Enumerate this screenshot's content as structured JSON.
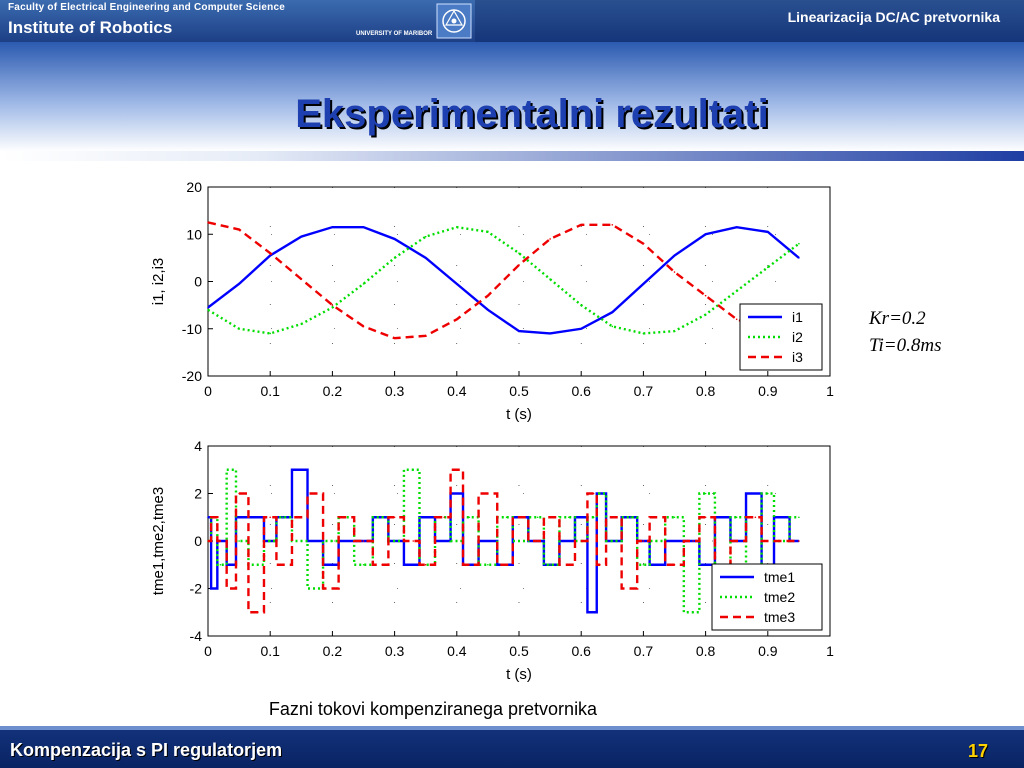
{
  "header": {
    "faculty": "Faculty of Electrical Engineering and Computer Science",
    "institute": "Institute of Robotics",
    "university": "UNIVERSITY OF MARIBOR",
    "topic": "Linearizacija DC/AC pretvornika"
  },
  "slide": {
    "title": "Eksperimentalni rezultati",
    "params": {
      "kr": "Kr=0.2",
      "ti": "Ti=0.8ms"
    },
    "caption": "Fazni tokovi kompenziranega pretvornika"
  },
  "footer": {
    "text": "Kompenzacija s PI regulatorjem",
    "page": "17"
  },
  "colors": {
    "i1": "#0000ff",
    "i2": "#00dd00",
    "i3": "#ee0000"
  },
  "chart_data": [
    {
      "type": "line",
      "xlabel": "t (s)",
      "ylabel": "i1, i2,i3",
      "xlim": [
        0,
        1
      ],
      "ylim": [
        -20,
        20
      ],
      "xticks": [
        "0",
        "0.1",
        "0.2",
        "0.3",
        "0.4",
        "0.5",
        "0.6",
        "0.7",
        "0.8",
        "0.9",
        "1"
      ],
      "yticks": [
        "20",
        "10",
        "0",
        "-10",
        "-20"
      ],
      "legend_position": "lower-right",
      "x": [
        0,
        0.05,
        0.1,
        0.15,
        0.2,
        0.25,
        0.3,
        0.35,
        0.4,
        0.45,
        0.5,
        0.55,
        0.6,
        0.65,
        0.7,
        0.75,
        0.8,
        0.85,
        0.9,
        0.95
      ],
      "series": [
        {
          "name": "i1",
          "style": "solid",
          "values": [
            -5.5,
            -0.5,
            5.5,
            9.5,
            11.5,
            11.5,
            9,
            5,
            -0.5,
            -6,
            -10.5,
            -11,
            -10,
            -6.5,
            -0.5,
            5.5,
            10,
            11.5,
            10.5,
            5
          ]
        },
        {
          "name": "i2",
          "style": "dotted",
          "values": [
            -6,
            -10,
            -11,
            -9,
            -5.5,
            -0.5,
            5,
            9.5,
            11.5,
            10.5,
            6,
            0.5,
            -5,
            -9.5,
            -11,
            -10.5,
            -7,
            -2,
            3,
            8
          ]
        },
        {
          "name": "i3",
          "style": "dashed",
          "values": [
            12.5,
            11,
            6,
            0.5,
            -5,
            -9.5,
            -12,
            -11.5,
            -8,
            -3,
            3.5,
            9,
            12,
            12,
            8,
            2,
            -3,
            -8,
            -10.5,
            -11
          ]
        }
      ]
    },
    {
      "type": "line",
      "xlabel": "t (s)",
      "ylabel": "tme1,tme2,tme3",
      "xlim": [
        0,
        1
      ],
      "ylim": [
        -4,
        4
      ],
      "xticks": [
        "0",
        "0.1",
        "0.2",
        "0.3",
        "0.4",
        "0.5",
        "0.6",
        "0.7",
        "0.8",
        "0.9",
        "1"
      ],
      "yticks": [
        "4",
        "2",
        "0",
        "-2",
        "-4"
      ],
      "legend_position": "lower-right",
      "x": [
        0,
        0.01,
        0.02,
        0.04,
        0.05,
        0.08,
        0.1,
        0.12,
        0.15,
        0.17,
        0.2,
        0.22,
        0.25,
        0.28,
        0.3,
        0.33,
        0.35,
        0.38,
        0.4,
        0.42,
        0.45,
        0.48,
        0.5,
        0.53,
        0.55,
        0.58,
        0.6,
        0.62,
        0.63,
        0.65,
        0.68,
        0.7,
        0.72,
        0.75,
        0.78,
        0.8,
        0.83,
        0.85,
        0.88,
        0.9,
        0.92,
        0.95
      ],
      "series": [
        {
          "name": "tme1",
          "style": "solid",
          "values": [
            1,
            -2,
            0,
            -1,
            1,
            1,
            0,
            1,
            3,
            0,
            -1,
            0,
            0,
            1,
            0,
            -1,
            1,
            0,
            2,
            -1,
            0,
            -1,
            1,
            0,
            -1,
            0,
            1,
            -3,
            2,
            0,
            1,
            0,
            -1,
            0,
            0,
            -1,
            1,
            0,
            2,
            -1,
            1,
            0
          ]
        },
        {
          "name": "tme2",
          "style": "dotted",
          "values": [
            0,
            1,
            -1,
            3,
            0,
            -1,
            0,
            1,
            0,
            -2,
            0,
            1,
            -1,
            1,
            0,
            3,
            -1,
            1,
            0,
            1,
            -1,
            1,
            0,
            1,
            -1,
            1,
            0,
            1,
            2,
            0,
            1,
            -1,
            0,
            1,
            -3,
            2,
            -1,
            1,
            -1,
            2,
            0,
            1
          ]
        },
        {
          "name": "tme3",
          "style": "dashed",
          "values": [
            0,
            1,
            0,
            -2,
            2,
            -3,
            1,
            -1,
            1,
            2,
            -2,
            1,
            0,
            -1,
            1,
            0,
            -1,
            1,
            3,
            -1,
            2,
            -1,
            1,
            0,
            1,
            -1,
            0,
            2,
            -1,
            1,
            -2,
            0,
            1,
            -1,
            0,
            1,
            -1,
            0,
            1,
            0,
            0,
            0
          ]
        }
      ]
    }
  ]
}
